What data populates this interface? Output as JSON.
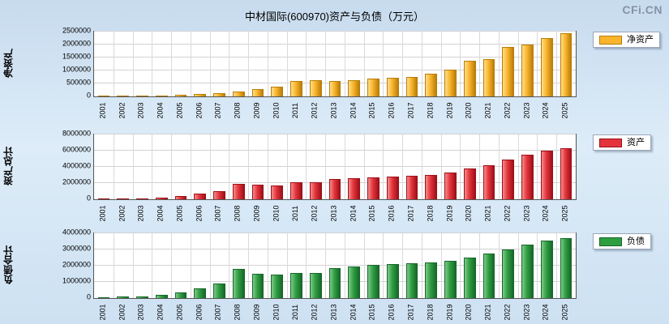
{
  "page": {
    "title": "中材国际(600970)资产与负债（万元）",
    "watermark": "CFi.CN"
  },
  "chart_data": [
    {
      "type": "bar",
      "name": "net-assets",
      "ylabel": "净资产",
      "legend": "净资产",
      "color": "#F9B42C",
      "color_light": "#FFDE8A",
      "color_dark": "#B97E08",
      "ylim": [
        0,
        2500000
      ],
      "yticks": [
        0,
        500000,
        1000000,
        1500000,
        2000000,
        2500000
      ],
      "ytick_labels": [
        "0",
        "500000",
        "1000000",
        "1500000",
        "2000000",
        "2500000"
      ],
      "categories": [
        "2001",
        "2002",
        "2003",
        "2004",
        "2005",
        "2006",
        "2007",
        "2008",
        "2009",
        "2010",
        "2011",
        "2012",
        "2013",
        "2014",
        "2015",
        "2016",
        "2017",
        "2018",
        "2019",
        "2020",
        "2021",
        "2022",
        "2023",
        "2024",
        "2025"
      ],
      "values": [
        15000,
        20000,
        25000,
        35000,
        60000,
        80000,
        110000,
        180000,
        270000,
        370000,
        580000,
        620000,
        600000,
        640000,
        690000,
        710000,
        760000,
        880000,
        1020000,
        1380000,
        1430000,
        1900000,
        2000000,
        2250000,
        2430000
      ],
      "grid": true,
      "legend_position": "top-right"
    },
    {
      "type": "bar",
      "name": "total-assets",
      "ylabel": "资产总计",
      "legend": "资产",
      "color": "#E3343C",
      "color_light": "#F58C8C",
      "color_dark": "#9E1018",
      "ylim": [
        0,
        8000000
      ],
      "yticks": [
        0,
        2000000,
        4000000,
        6000000,
        8000000
      ],
      "ytick_labels": [
        "0",
        "2000000",
        "4000000",
        "6000000",
        "8000000"
      ],
      "categories": [
        "2001",
        "2002",
        "2003",
        "2004",
        "2005",
        "2006",
        "2007",
        "2008",
        "2009",
        "2010",
        "2011",
        "2012",
        "2013",
        "2014",
        "2015",
        "2016",
        "2017",
        "2018",
        "2019",
        "2020",
        "2021",
        "2022",
        "2023",
        "2024",
        "2025"
      ],
      "values": [
        80000,
        100000,
        150000,
        250000,
        400000,
        700000,
        1050000,
        1900000,
        1800000,
        1750000,
        2100000,
        2150000,
        2500000,
        2600000,
        2750000,
        2850000,
        2950000,
        3050000,
        3300000,
        3850000,
        4200000,
        4900000,
        5500000,
        6050000,
        6300000
      ],
      "grid": true,
      "legend_position": "top-right"
    },
    {
      "type": "bar",
      "name": "total-liabilities",
      "ylabel": "负债合计",
      "legend": "负债",
      "color": "#2F9E41",
      "color_light": "#7FC98B",
      "color_dark": "#17682A",
      "ylim": [
        0,
        4000000
      ],
      "yticks": [
        0,
        1000000,
        2000000,
        3000000,
        4000000
      ],
      "ytick_labels": [
        "0",
        "1000000",
        "2000000",
        "3000000",
        "4000000"
      ],
      "categories": [
        "2001",
        "2002",
        "2003",
        "2004",
        "2005",
        "2006",
        "2007",
        "2008",
        "2009",
        "2010",
        "2011",
        "2012",
        "2013",
        "2014",
        "2015",
        "2016",
        "2017",
        "2018",
        "2019",
        "2020",
        "2021",
        "2022",
        "2023",
        "2024",
        "2025"
      ],
      "values": [
        60000,
        80000,
        120000,
        200000,
        330000,
        620000,
        900000,
        1780000,
        1500000,
        1430000,
        1530000,
        1560000,
        1850000,
        1950000,
        2050000,
        2100000,
        2150000,
        2200000,
        2280000,
        2500000,
        2750000,
        3000000,
        3300000,
        3550000,
        3700000
      ],
      "grid": true,
      "legend_position": "top-right"
    }
  ]
}
